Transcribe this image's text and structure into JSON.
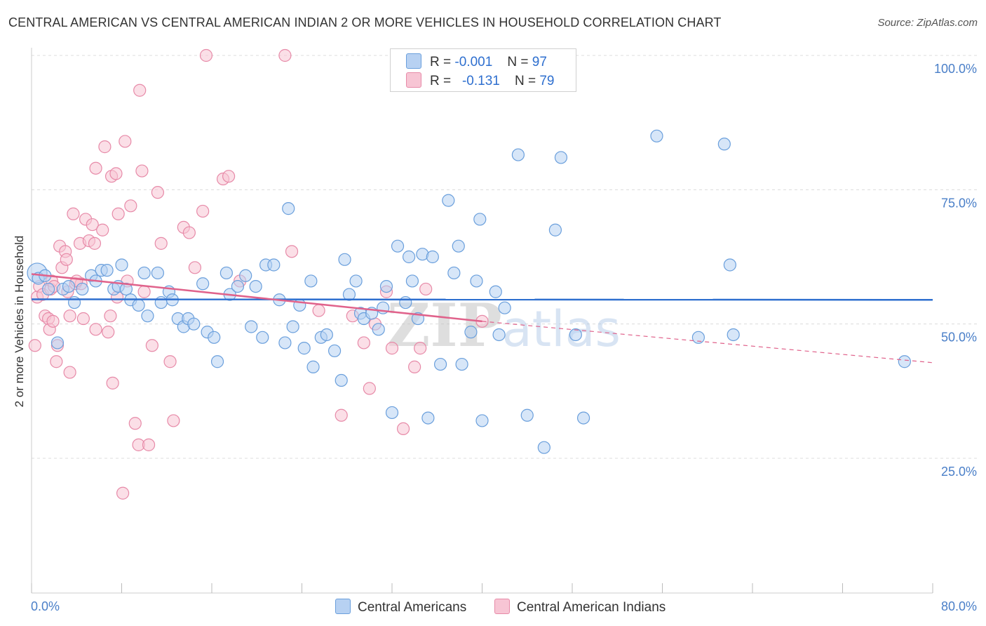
{
  "title": "CENTRAL AMERICAN VS CENTRAL AMERICAN INDIAN 2 OR MORE VEHICLES IN HOUSEHOLD CORRELATION CHART",
  "source": "Source: ZipAtlas.com",
  "watermark": "ZIPatlas",
  "legend": {
    "series1": {
      "r_label": "R =",
      "r_value": "-0.001",
      "n_label": "N =",
      "n_value": "97"
    },
    "series2": {
      "r_label": "R =",
      "r_value": "-0.131",
      "n_label": "N =",
      "n_value": "79"
    }
  },
  "colors": {
    "blue_fill": "#b7d1f2",
    "blue_stroke": "#6a9fdc",
    "blue_line": "#2e6fcf",
    "pink_fill": "#f7c5d4",
    "pink_stroke": "#e78aa8",
    "pink_line": "#e0628b",
    "tick_text": "#4a7fc8",
    "grid": "#dcdcdc"
  },
  "chart_data": {
    "type": "scatter",
    "title": "CENTRAL AMERICAN VS CENTRAL AMERICAN INDIAN 2 OR MORE VEHICLES IN HOUSEHOLD CORRELATION CHART",
    "xlabel": "",
    "ylabel": "2 or more Vehicles in Household",
    "xlim": [
      0,
      80
    ],
    "ylim": [
      0,
      105
    ],
    "x_tick_labels": [
      "0.0%",
      "80.0%"
    ],
    "y_ticks": [
      25,
      50,
      75,
      100
    ],
    "y_tick_labels": [
      "25.0%",
      "50.0%",
      "75.0%",
      "100.0%"
    ],
    "grid": true,
    "legend_position": "bottom",
    "series": [
      {
        "name": "Central Americans",
        "trend": {
          "x": [
            0,
            80
          ],
          "y": [
            54.6,
            54.5
          ]
        },
        "points": [
          [
            0.5,
            59.5
          ],
          [
            0.6,
            58.5
          ],
          [
            1.2,
            59
          ],
          [
            1.5,
            56.5
          ],
          [
            2.3,
            46.5
          ],
          [
            2.8,
            56.5
          ],
          [
            3.3,
            57
          ],
          [
            3.8,
            54
          ],
          [
            4.5,
            56.5
          ],
          [
            5.3,
            59
          ],
          [
            5.7,
            58
          ],
          [
            6.2,
            60
          ],
          [
            6.7,
            60
          ],
          [
            7.3,
            56.5
          ],
          [
            7.7,
            57
          ],
          [
            8,
            61
          ],
          [
            8.4,
            56.5
          ],
          [
            8.8,
            54.5
          ],
          [
            9.5,
            53.5
          ],
          [
            10,
            59.5
          ],
          [
            10.3,
            51.5
          ],
          [
            11.2,
            59.5
          ],
          [
            11.5,
            54
          ],
          [
            12.2,
            56
          ],
          [
            12.5,
            54.5
          ],
          [
            13,
            51
          ],
          [
            13.5,
            49.5
          ],
          [
            13.9,
            51
          ],
          [
            14.4,
            50
          ],
          [
            15.2,
            57.5
          ],
          [
            15.6,
            48.5
          ],
          [
            16.2,
            47.5
          ],
          [
            16.5,
            43
          ],
          [
            17.3,
            59.5
          ],
          [
            17.6,
            55.5
          ],
          [
            18.3,
            57
          ],
          [
            19,
            59
          ],
          [
            19.5,
            49.5
          ],
          [
            19.9,
            57
          ],
          [
            20.5,
            47.5
          ],
          [
            20.8,
            61
          ],
          [
            21.5,
            61
          ],
          [
            22,
            54.5
          ],
          [
            22.5,
            46.5
          ],
          [
            22.8,
            71.5
          ],
          [
            23.2,
            49.5
          ],
          [
            23.8,
            53.5
          ],
          [
            24.2,
            45.5
          ],
          [
            24.8,
            58
          ],
          [
            25,
            42
          ],
          [
            25.7,
            47.5
          ],
          [
            26.2,
            48
          ],
          [
            26.9,
            45
          ],
          [
            27.5,
            39.5
          ],
          [
            27.8,
            62
          ],
          [
            28.2,
            55.5
          ],
          [
            28.8,
            58
          ],
          [
            29.2,
            52
          ],
          [
            29.5,
            51
          ],
          [
            30.2,
            52
          ],
          [
            30.8,
            49
          ],
          [
            31.2,
            53
          ],
          [
            31.5,
            57
          ],
          [
            32,
            33.5
          ],
          [
            32.5,
            64.5
          ],
          [
            33.2,
            54
          ],
          [
            33.5,
            62.5
          ],
          [
            33.8,
            58
          ],
          [
            34.3,
            51
          ],
          [
            34.7,
            63
          ],
          [
            35.2,
            32.5
          ],
          [
            35.6,
            62.5
          ],
          [
            36.3,
            42.5
          ],
          [
            37,
            73
          ],
          [
            37.5,
            59.5
          ],
          [
            37.9,
            64.5
          ],
          [
            38.2,
            42.5
          ],
          [
            39,
            48.5
          ],
          [
            39.5,
            58
          ],
          [
            39.8,
            69.5
          ],
          [
            40,
            32
          ],
          [
            41.2,
            56
          ],
          [
            41.5,
            48
          ],
          [
            42,
            53
          ],
          [
            43.2,
            81.5
          ],
          [
            44,
            33
          ],
          [
            45.5,
            27
          ],
          [
            46.5,
            67.5
          ],
          [
            47,
            81
          ],
          [
            48.3,
            48
          ],
          [
            49,
            32.5
          ],
          [
            55.5,
            85
          ],
          [
            59.2,
            47.5
          ],
          [
            62,
            61
          ],
          [
            62.3,
            48
          ],
          [
            61.5,
            83.5
          ],
          [
            77.5,
            43
          ]
        ]
      },
      {
        "name": "Central American Indians",
        "trend": {
          "x": [
            0,
            40,
            80
          ],
          "y": [
            59.3,
            50.5,
            42.8
          ]
        },
        "points": [
          [
            0.3,
            46
          ],
          [
            0.5,
            55
          ],
          [
            0.7,
            57
          ],
          [
            1,
            55.5
          ],
          [
            1.2,
            51.5
          ],
          [
            1.5,
            51
          ],
          [
            1.6,
            49
          ],
          [
            1.7,
            56.5
          ],
          [
            1.8,
            58
          ],
          [
            1.9,
            50.5
          ],
          [
            2.2,
            43
          ],
          [
            2.3,
            46
          ],
          [
            2.5,
            64.5
          ],
          [
            2.7,
            60.5
          ],
          [
            3,
            63.5
          ],
          [
            3.1,
            62
          ],
          [
            3.2,
            56
          ],
          [
            3.4,
            51.5
          ],
          [
            3.4,
            41
          ],
          [
            3.7,
            70.5
          ],
          [
            3.9,
            57.5
          ],
          [
            4.3,
            65
          ],
          [
            4.4,
            57.5
          ],
          [
            4.6,
            51
          ],
          [
            4.8,
            69.5
          ],
          [
            5.1,
            65.5
          ],
          [
            5.4,
            68.5
          ],
          [
            5.6,
            65
          ],
          [
            5.7,
            49
          ],
          [
            5.7,
            79
          ],
          [
            6.3,
            67.5
          ],
          [
            6.5,
            83
          ],
          [
            6.8,
            48.5
          ],
          [
            7,
            51.5
          ],
          [
            7.1,
            77.5
          ],
          [
            7.2,
            39
          ],
          [
            7.5,
            78
          ],
          [
            7.6,
            55
          ],
          [
            7.7,
            70.5
          ],
          [
            8.1,
            18.5
          ],
          [
            8.3,
            84
          ],
          [
            8.5,
            58
          ],
          [
            8.8,
            72
          ],
          [
            9.2,
            31.5
          ],
          [
            9.5,
            27.5
          ],
          [
            9.6,
            93.5
          ],
          [
            9.8,
            78.5
          ],
          [
            10,
            56
          ],
          [
            10.4,
            27.5
          ],
          [
            10.7,
            46
          ],
          [
            11.2,
            74.5
          ],
          [
            11.5,
            65
          ],
          [
            12.3,
            43
          ],
          [
            12.6,
            32
          ],
          [
            13.5,
            68
          ],
          [
            14,
            67
          ],
          [
            14.5,
            60.5
          ],
          [
            15.2,
            71
          ],
          [
            15.5,
            100
          ],
          [
            17,
            77
          ],
          [
            17.5,
            77.5
          ],
          [
            18.5,
            58
          ],
          [
            22.5,
            100
          ],
          [
            23.1,
            63.5
          ],
          [
            25.5,
            52.5
          ],
          [
            27.5,
            33
          ],
          [
            28.5,
            51.5
          ],
          [
            29.5,
            46.5
          ],
          [
            30,
            38
          ],
          [
            30.5,
            50
          ],
          [
            31.5,
            56
          ],
          [
            32,
            45.5
          ],
          [
            33,
            30.5
          ],
          [
            34,
            42
          ],
          [
            34.5,
            45.5
          ],
          [
            35,
            56.5
          ],
          [
            40,
            50.5
          ],
          [
            2,
            57
          ],
          [
            4,
            58
          ]
        ]
      }
    ]
  }
}
